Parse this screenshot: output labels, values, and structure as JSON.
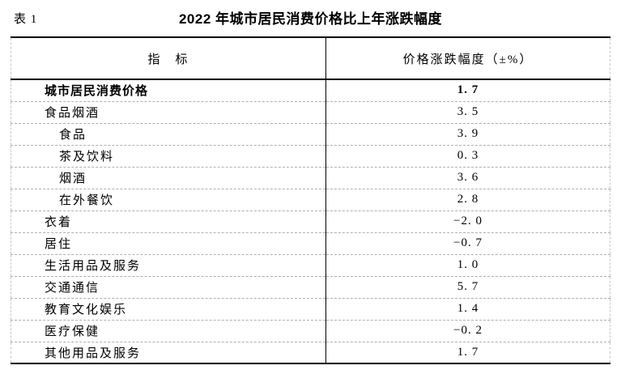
{
  "caption": {
    "table_number": "表 1",
    "title": "2022 年城市居民消费价格比上年涨跌幅度"
  },
  "table": {
    "header": {
      "indicator": "指　标",
      "value": "价格涨跌幅度（±%）"
    },
    "rows": [
      {
        "label": "城市居民消费价格",
        "value": "1. 7",
        "indent": 1,
        "bold": true
      },
      {
        "label": "食品烟酒",
        "value": "3. 5",
        "indent": 1,
        "bold": false
      },
      {
        "label": "食品",
        "value": "3. 9",
        "indent": 2,
        "bold": false
      },
      {
        "label": "茶及饮料",
        "value": "0. 3",
        "indent": 2,
        "bold": false
      },
      {
        "label": "烟酒",
        "value": "3. 6",
        "indent": 2,
        "bold": false
      },
      {
        "label": "在外餐饮",
        "value": "2. 8",
        "indent": 2,
        "bold": false
      },
      {
        "label": "衣着",
        "value": "−2. 0",
        "indent": 1,
        "bold": false
      },
      {
        "label": "居住",
        "value": "−0. 7",
        "indent": 1,
        "bold": false
      },
      {
        "label": "生活用品及服务",
        "value": "1. 0",
        "indent": 1,
        "bold": false
      },
      {
        "label": "交通通信",
        "value": "5. 7",
        "indent": 1,
        "bold": false
      },
      {
        "label": "教育文化娱乐",
        "value": "1. 4",
        "indent": 1,
        "bold": false
      },
      {
        "label": "医疗保健",
        "value": "−0. 2",
        "indent": 1,
        "bold": false
      },
      {
        "label": "其他用品及服务",
        "value": "1. 7",
        "indent": 1,
        "bold": false
      }
    ]
  },
  "colors": {
    "text": "#000000",
    "heavy_rule": "#000000",
    "dashed_rule": "#b0b0b0",
    "background": "#ffffff"
  }
}
